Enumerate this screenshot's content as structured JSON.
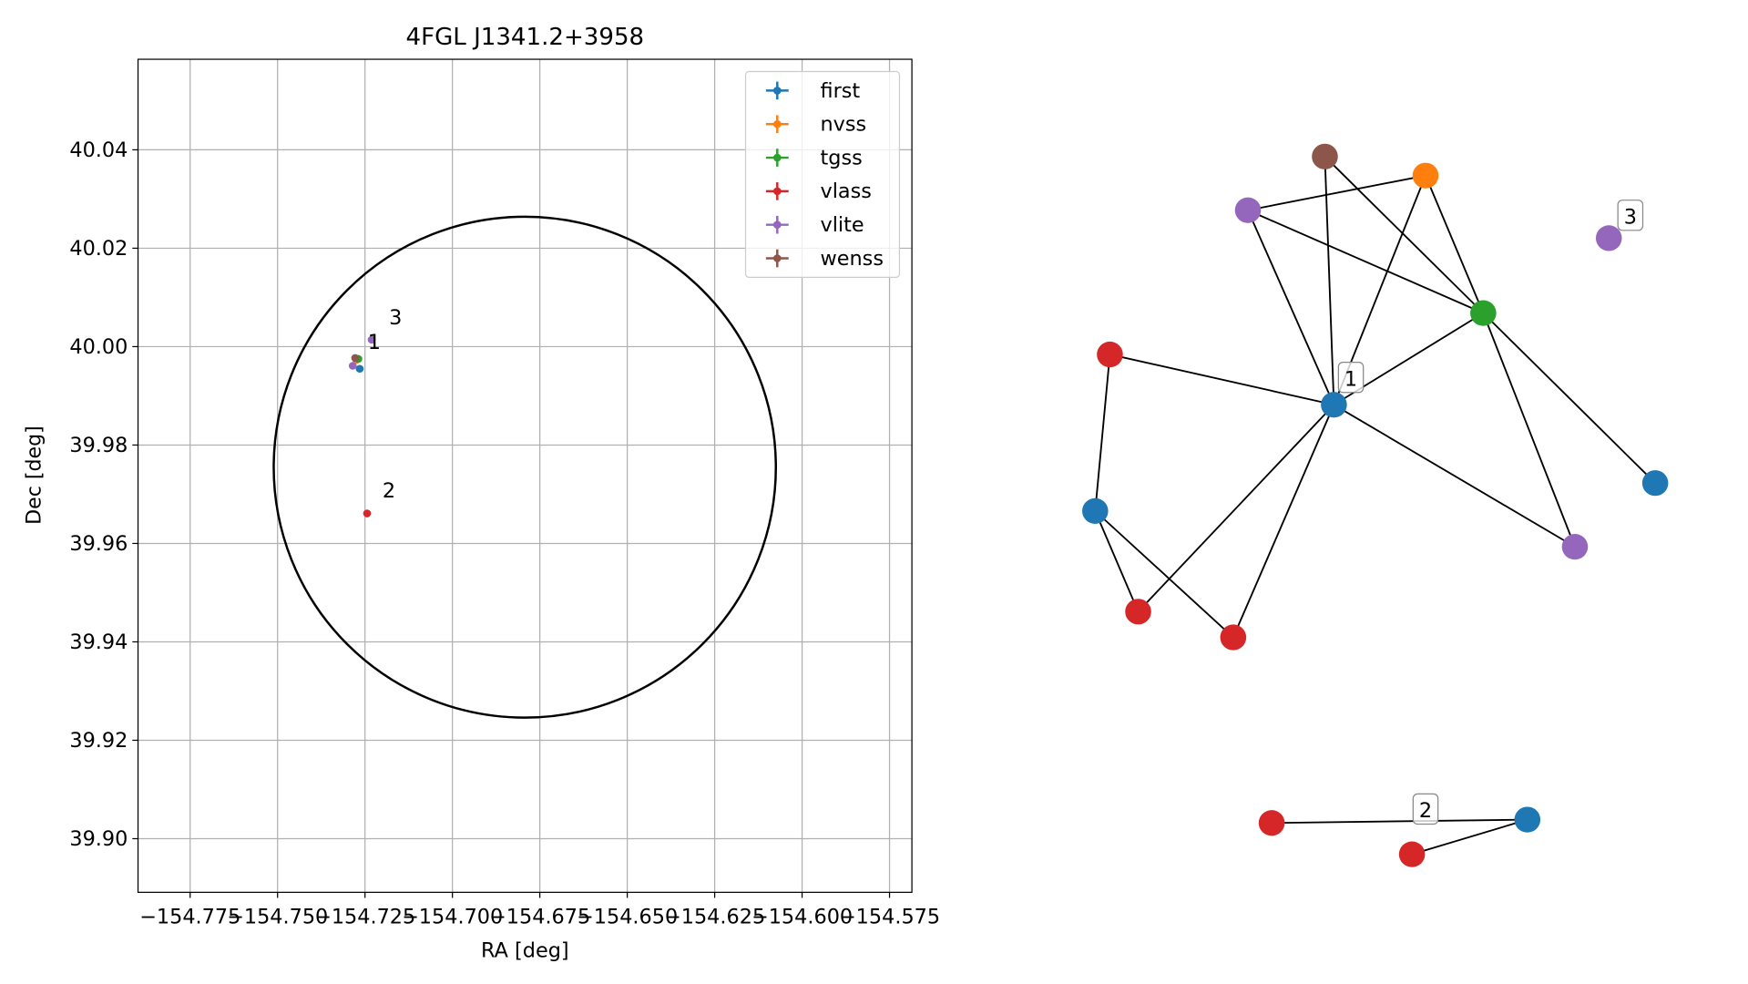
{
  "chart_data": [
    {
      "type": "scatter",
      "title": "4FGL J1341.2+3958",
      "xlabel": "RA [deg]",
      "ylabel": "Dec [deg]",
      "xlim": [
        -154.7899,
        -154.5686
      ],
      "ylim": [
        39.8891,
        40.0584
      ],
      "xticks": [
        {
          "value": -154.775,
          "label": "−154.775"
        },
        {
          "value": -154.75,
          "label": "−154.750"
        },
        {
          "value": -154.725,
          "label": "−154.725"
        },
        {
          "value": -154.7,
          "label": "−154.700"
        },
        {
          "value": -154.675,
          "label": "−154.675"
        },
        {
          "value": -154.65,
          "label": "−154.650"
        },
        {
          "value": -154.625,
          "label": "−154.625"
        },
        {
          "value": -154.6,
          "label": "−154.600"
        },
        {
          "value": -154.575,
          "label": "−154.575"
        }
      ],
      "yticks": [
        {
          "value": 39.9,
          "label": "39.90"
        },
        39.92,
        39.94,
        39.96,
        39.98,
        {
          "value": 40.0,
          "label": "40.00"
        },
        40.02,
        40.04
      ],
      "grid": true,
      "legend": "upper right",
      "series": [
        {
          "name": "first",
          "color": "#1f77b4",
          "x": [
            -154.7265
          ],
          "values": [
            39.9955
          ]
        },
        {
          "name": "nvss",
          "color": "#ff7f0e",
          "x": [
            -154.7275
          ],
          "values": [
            39.9973
          ]
        },
        {
          "name": "tgss",
          "color": "#2ca02c",
          "x": [
            -154.7269
          ],
          "values": [
            39.9975
          ]
        },
        {
          "name": "vlass",
          "color": "#d62728",
          "x": [
            -154.7244
          ],
          "values": [
            39.9661
          ]
        },
        {
          "name": "vlite",
          "color": "#9467bd",
          "x": [
            -154.7285,
            -154.7231
          ],
          "values": [
            39.9961,
            40.0014
          ]
        },
        {
          "name": "wenss",
          "color": "#8c564b",
          "x": [
            -154.7278
          ],
          "values": [
            39.9977
          ]
        }
      ],
      "region": {
        "x": -154.6793,
        "y": 39.9755,
        "rx": 0.0718,
        "ry": 0.0509
      },
      "annotations": [
        {
          "text": "1",
          "x": -154.7242,
          "y": 39.9995
        },
        {
          "text": "2",
          "x": -154.72,
          "y": 39.9693
        },
        {
          "text": "3",
          "x": -154.7181,
          "y": 40.0045
        }
      ]
    },
    {
      "type": "network",
      "nodes": [
        {
          "color": "#8c564b"
        },
        {
          "color": "#ff7f0e"
        },
        {
          "color": "#9467bd"
        },
        {
          "color": "#9467bd",
          "label": "3"
        },
        {
          "color": "#2ca02c"
        },
        {
          "color": "#d62728"
        },
        {
          "color": "#1f77b4",
          "label": "1"
        },
        {
          "color": "#1f77b4"
        },
        {
          "color": "#1f77b4"
        },
        {
          "color": "#9467bd"
        },
        {
          "color": "#d62728"
        },
        {
          "color": "#d62728"
        },
        {
          "color": "#d62728"
        },
        {
          "color": "#d62728"
        },
        {
          "color": "#1f77b4",
          "label": "2"
        }
      ]
    }
  ]
}
